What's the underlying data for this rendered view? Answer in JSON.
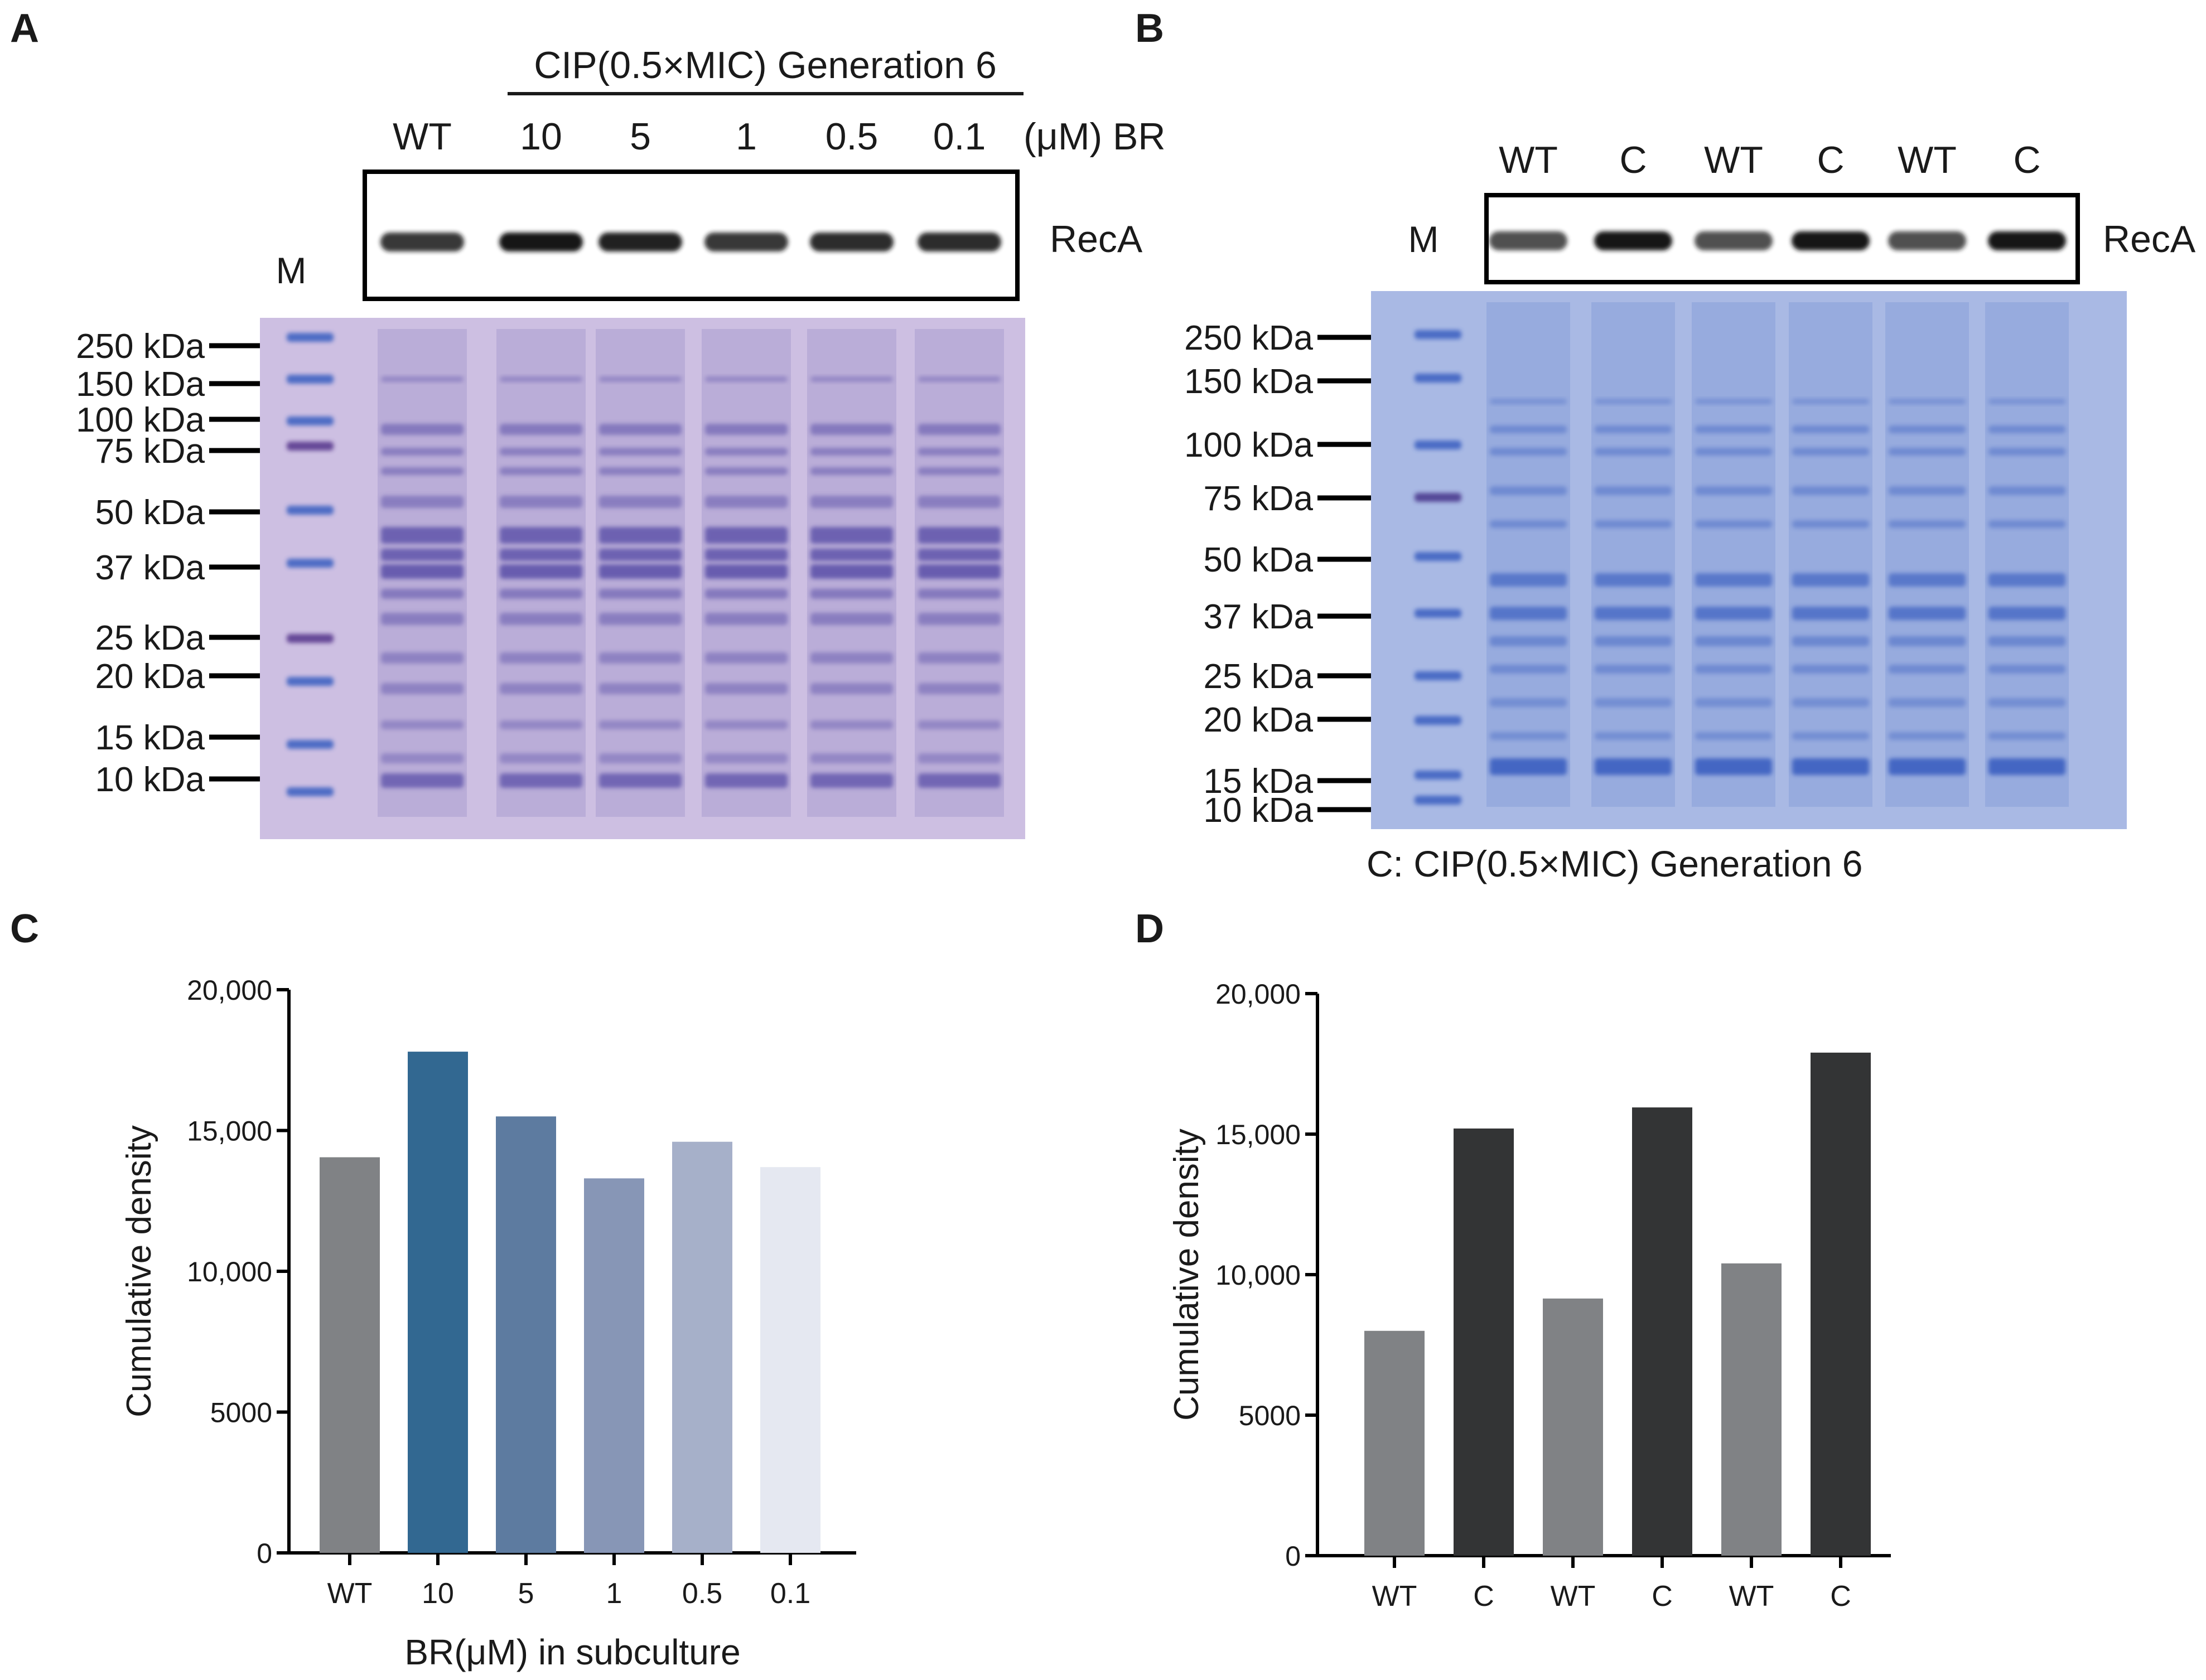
{
  "panels": {
    "a": {
      "letter": "A",
      "header": "CIP(0.5×MIC) Generation 6",
      "lane_labels": [
        "WT",
        "10",
        "5",
        "1",
        "0.5",
        "0.1"
      ],
      "unit_label": "(μM) BR",
      "marker_label": "M",
      "blot_label": "RecA",
      "ladder": [
        "250 kDa",
        "150 kDa",
        "100 kDa",
        "75 kDa",
        "50 kDa",
        "37 kDa",
        "25 kDa",
        "20 kDa",
        "15 kDa",
        "10 kDa"
      ]
    },
    "b": {
      "letter": "B",
      "lane_labels": [
        "WT",
        "C",
        "WT",
        "C",
        "WT",
        "C"
      ],
      "marker_label": "M",
      "blot_label": "RecA",
      "ladder": [
        "250 kDa",
        "150 kDa",
        "100 kDa",
        "75 kDa",
        "50 kDa",
        "37 kDa",
        "25 kDa",
        "20 kDa",
        "15 kDa",
        "10 kDa"
      ],
      "footnote": "C: CIP(0.5×MIC) Generation 6"
    },
    "c": {
      "letter": "C"
    },
    "d": {
      "letter": "D"
    }
  },
  "colors": {
    "gel_a": "#cdbfe2",
    "gel_b": "#a9b9e4",
    "band_a": "#5a4fa8",
    "band_b": "#3f63c2"
  },
  "chart_data": [
    {
      "type": "bar",
      "panel": "C",
      "title": "",
      "categories": [
        "WT",
        "10",
        "5",
        "1",
        "0.5",
        "0.1"
      ],
      "values": [
        14050,
        17800,
        15500,
        13300,
        14600,
        13700
      ],
      "colors": [
        "#808285",
        "#326891",
        "#5d7ba0",
        "#8796b6",
        "#a6b0c9",
        "#e5e8f1"
      ],
      "xlabel": "BR(μM) in subculture",
      "ylabel": "Cumulative density",
      "ylim": [
        0,
        20000
      ],
      "yticks": [
        0,
        5000,
        10000,
        15000,
        20000
      ],
      "ytick_labels": [
        "0",
        "5000",
        "10,000",
        "15,000",
        "20,000"
      ],
      "grid": false
    },
    {
      "type": "bar",
      "panel": "D",
      "title": "",
      "categories": [
        "WT",
        "C",
        "WT",
        "C",
        "WT",
        "C"
      ],
      "values": [
        8000,
        15200,
        9150,
        15950,
        10400,
        17900
      ],
      "colors": [
        "#808285",
        "#333435",
        "#808285",
        "#333435",
        "#808285",
        "#333435"
      ],
      "xlabel": "",
      "ylabel": "Cumulative density",
      "ylim": [
        0,
        20000
      ],
      "yticks": [
        0,
        5000,
        10000,
        15000,
        20000
      ],
      "ytick_labels": [
        "0",
        "5000",
        "10,000",
        "15,000",
        "20,000"
      ],
      "grid": false
    }
  ]
}
